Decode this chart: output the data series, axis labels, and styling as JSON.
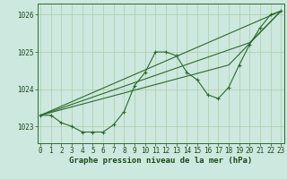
{
  "xlabel": "Graphe pression niveau de la mer (hPa)",
  "hours": [
    0,
    1,
    2,
    3,
    4,
    5,
    6,
    7,
    8,
    9,
    10,
    11,
    12,
    13,
    14,
    15,
    16,
    17,
    18,
    19,
    20,
    21,
    22,
    23
  ],
  "main_line": [
    1023.3,
    1023.3,
    1023.1,
    1023.0,
    1022.85,
    1022.85,
    1022.85,
    1023.05,
    1023.4,
    1024.1,
    1024.45,
    1025.0,
    1025.0,
    1024.9,
    1024.45,
    1024.25,
    1023.85,
    1023.75,
    1024.05,
    1024.65,
    1025.2,
    1025.65,
    1026.0,
    1026.1
  ],
  "trend1_x": [
    0,
    23
  ],
  "trend1_y": [
    1023.3,
    1026.1
  ],
  "trend2_x": [
    0,
    20,
    23
  ],
  "trend2_y": [
    1023.3,
    1025.25,
    1026.1
  ],
  "trend3_x": [
    0,
    18,
    23
  ],
  "trend3_y": [
    1023.3,
    1024.65,
    1026.1
  ],
  "ylim": [
    1022.55,
    1026.3
  ],
  "yticks": [
    1023,
    1024,
    1025,
    1026
  ],
  "xlim": [
    -0.3,
    23.3
  ],
  "line_color": "#2d6a2d",
  "bg_color": "#cde8de",
  "grid_color": "#aaccaa",
  "label_color": "#1a4a1a",
  "tick_fontsize": 5.5,
  "xlabel_fontsize": 6.5
}
